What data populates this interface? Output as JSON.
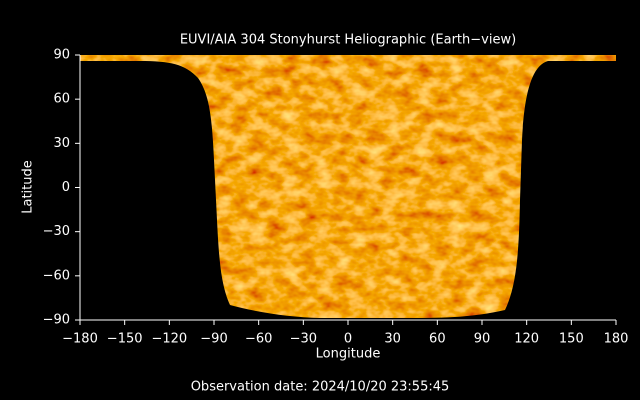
{
  "chart_data": {
    "type": "image",
    "title": "EUVI/AIA 304 Stonyhurst Heliographic (Earth−view)",
    "xlabel": "Longitude",
    "ylabel": "Latitude",
    "footer": "Observation date: 2024/10/20 23:55:45",
    "xlim": [
      -180,
      180
    ],
    "ylim": [
      -90,
      90
    ],
    "xticks": [
      {
        "value": -180,
        "label": "−180"
      },
      {
        "value": -150,
        "label": "−150"
      },
      {
        "value": -120,
        "label": "−120"
      },
      {
        "value": -90,
        "label": "−90"
      },
      {
        "value": -60,
        "label": "−60"
      },
      {
        "value": -30,
        "label": "−30"
      },
      0,
      30,
      60,
      90,
      120,
      150,
      180
    ],
    "yticks": [
      {
        "value": -90,
        "label": "−90"
      },
      {
        "value": -60,
        "label": "−60"
      },
      {
        "value": -30,
        "label": "−30"
      },
      0,
      30,
      60,
      90
    ]
  }
}
